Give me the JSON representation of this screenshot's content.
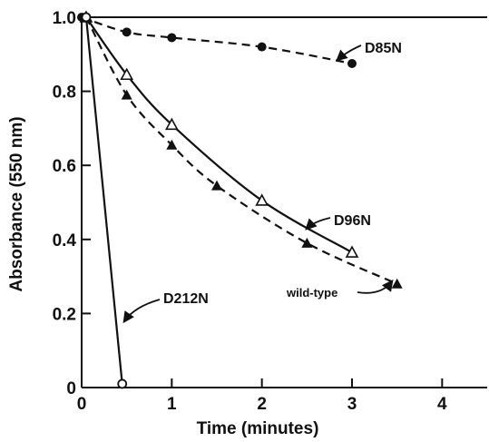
{
  "chart_data": {
    "type": "line",
    "xlabel": "Time (minutes)",
    "ylabel": "Absorbance (550 nm)",
    "xlim": [
      0,
      4.5
    ],
    "ylim": [
      0,
      1.0
    ],
    "xticks": [
      0,
      1,
      2,
      3,
      4
    ],
    "yticks": [
      0,
      0.2,
      0.4,
      0.6,
      0.8,
      1.0
    ],
    "xtick_labels": [
      "0",
      "1",
      "2",
      "3",
      "4"
    ],
    "ytick_labels": [
      "0",
      "0.2",
      "0.4",
      "0.6",
      "0.8",
      "1.0"
    ],
    "grid": false,
    "series": [
      {
        "name": "D85N",
        "marker": "filled-circle",
        "line": "dashed",
        "x": [
          0,
          0.5,
          1.0,
          2.0,
          3.0
        ],
        "y": [
          1.0,
          0.96,
          0.945,
          0.92,
          0.875
        ]
      },
      {
        "name": "D96N",
        "marker": "open-triangle",
        "line": "solid",
        "x": [
          0.05,
          0.5,
          1.0,
          2.0,
          3.0
        ],
        "y": [
          1.0,
          0.845,
          0.71,
          0.505,
          0.365
        ]
      },
      {
        "name": "wild-type",
        "marker": "filled-triangle",
        "line": "dashed",
        "x": [
          0.05,
          0.5,
          1.0,
          1.5,
          2.5,
          3.5
        ],
        "y": [
          1.0,
          0.79,
          0.655,
          0.545,
          0.39,
          0.28
        ]
      },
      {
        "name": "D212N",
        "marker": "open-circle",
        "line": "solid",
        "x": [
          0.05,
          0.45
        ],
        "y": [
          1.0,
          0.01
        ]
      }
    ]
  }
}
